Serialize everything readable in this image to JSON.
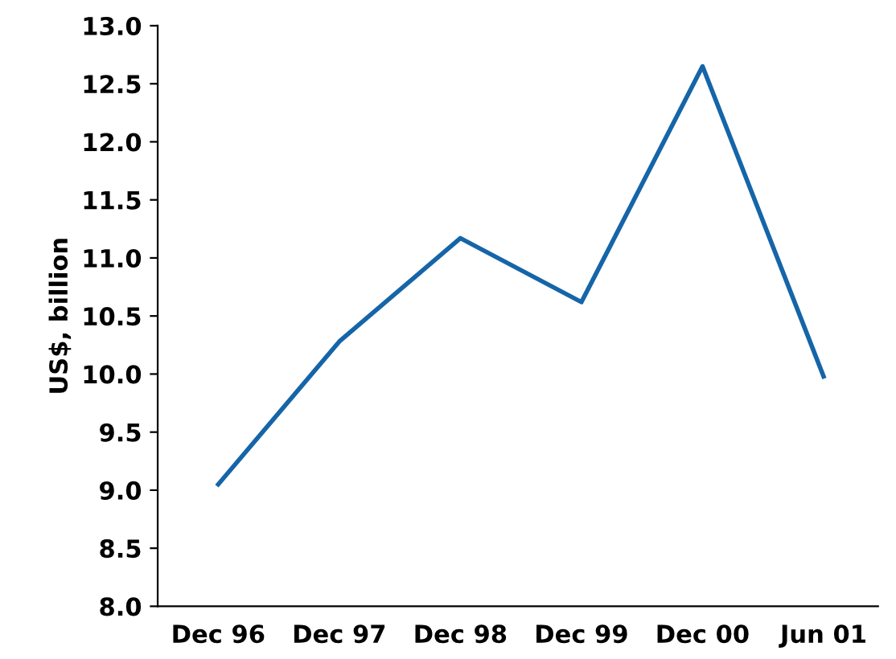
{
  "chart_data": {
    "type": "line",
    "ylabel": "US$, billion",
    "categories": [
      "Dec 96",
      "Dec 97",
      "Dec 98",
      "Dec 99",
      "Dec 00",
      "Jun 01"
    ],
    "series": [
      {
        "color": "#1565a8",
        "values": [
          9.05,
          10.28,
          11.17,
          10.62,
          12.65,
          9.98
        ]
      }
    ],
    "ylim": [
      8.0,
      13.0
    ],
    "yticks": [
      {
        "value": 8.0,
        "label": "8.0"
      },
      {
        "value": 8.5,
        "label": "8.5"
      },
      {
        "value": 9.0,
        "label": "9.0"
      },
      {
        "value": 9.5,
        "label": "9.5"
      },
      {
        "value": 10.0,
        "label": "10.0"
      },
      {
        "value": 10.5,
        "label": "10.5"
      },
      {
        "value": 11.0,
        "label": "11.0"
      },
      {
        "value": 11.5,
        "label": "11.5"
      },
      {
        "value": 12.0,
        "label": "12.0"
      },
      {
        "value": 12.5,
        "label": "12.5"
      },
      {
        "value": 13.0,
        "label": "13.0"
      }
    ],
    "grid": false,
    "legend": false
  }
}
